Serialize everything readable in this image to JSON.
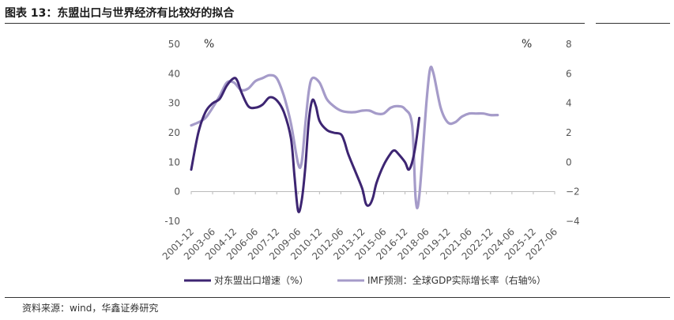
{
  "title": "图表 13：东盟出口与世界经济有比较好的拟合",
  "source": "资料来源：wind，华鑫证券研究",
  "chart_data": {
    "type": "line",
    "left_axis": {
      "unit": "%",
      "ylim": [
        -10,
        50
      ],
      "ticks": [
        50,
        40,
        30,
        20,
        10,
        0,
        -10
      ]
    },
    "right_axis": {
      "unit": "%",
      "ylim": [
        -4,
        8
      ],
      "ticks": [
        8,
        6,
        4,
        2,
        0,
        -2,
        -4
      ]
    },
    "x_tick_labels": [
      "2001-12",
      "2003-06",
      "2004-12",
      "2006-06",
      "2007-12",
      "2009-06",
      "2010-12",
      "2012-06",
      "2013-12",
      "2015-06",
      "2016-12",
      "2018-06",
      "2019-12",
      "2021-06",
      "2022-12",
      "2024-06",
      "2025-12",
      "2027-06"
    ],
    "grid": false,
    "legend_position": "bottom",
    "series": [
      {
        "name": "对东盟出口增速（%）",
        "axis": "left",
        "color": "#3d2572",
        "points": [
          [
            "2001-12",
            7.5
          ],
          [
            "2002-06",
            20
          ],
          [
            "2002-12",
            27
          ],
          [
            "2003-06",
            30
          ],
          [
            "2003-12",
            31.5
          ],
          [
            "2004-06",
            36
          ],
          [
            "2004-12",
            38.5
          ],
          [
            "2005-03",
            37.5
          ],
          [
            "2005-06",
            34
          ],
          [
            "2005-12",
            29
          ],
          [
            "2006-06",
            28.5
          ],
          [
            "2006-12",
            29.5
          ],
          [
            "2007-06",
            32
          ],
          [
            "2007-12",
            31
          ],
          [
            "2008-06",
            27
          ],
          [
            "2008-12",
            18
          ],
          [
            "2009-03",
            5
          ],
          [
            "2009-06",
            -6.5
          ],
          [
            "2009-09",
            -3
          ],
          [
            "2009-12",
            8
          ],
          [
            "2010-03",
            24
          ],
          [
            "2010-06",
            31
          ],
          [
            "2010-09",
            29
          ],
          [
            "2010-12",
            24
          ],
          [
            "2011-06",
            21
          ],
          [
            "2011-12",
            20
          ],
          [
            "2012-06",
            19.5
          ],
          [
            "2012-09",
            17
          ],
          [
            "2012-12",
            13
          ],
          [
            "2013-06",
            7
          ],
          [
            "2013-12",
            1
          ],
          [
            "2014-03",
            -4
          ],
          [
            "2014-06",
            -4.5
          ],
          [
            "2014-09",
            -2
          ],
          [
            "2014-12",
            3
          ],
          [
            "2015-06",
            9
          ],
          [
            "2015-12",
            13
          ],
          [
            "2016-03",
            14
          ],
          [
            "2016-06",
            13
          ],
          [
            "2016-12",
            10
          ],
          [
            "2017-03",
            7.5
          ],
          [
            "2017-06",
            10
          ],
          [
            "2017-09",
            16
          ],
          [
            "2017-12",
            25
          ]
        ]
      },
      {
        "name": "IMF预测：全球GDP实际增长率（右轴%）",
        "axis": "right",
        "color": "#a59bc9",
        "points": [
          [
            "2001-12",
            2.5
          ],
          [
            "2002-06",
            2.7
          ],
          [
            "2002-12",
            3.0
          ],
          [
            "2003-06",
            3.7
          ],
          [
            "2003-12",
            4.5
          ],
          [
            "2004-06",
            5.4
          ],
          [
            "2004-12",
            5.4
          ],
          [
            "2005-06",
            4.9
          ],
          [
            "2005-12",
            5.0
          ],
          [
            "2006-06",
            5.5
          ],
          [
            "2006-12",
            5.7
          ],
          [
            "2007-06",
            5.9
          ],
          [
            "2007-12",
            5.7
          ],
          [
            "2008-06",
            4.5
          ],
          [
            "2008-12",
            2.6
          ],
          [
            "2009-06",
            -0.1
          ],
          [
            "2009-09",
            0.0
          ],
          [
            "2009-12",
            2.5
          ],
          [
            "2010-03",
            4.8
          ],
          [
            "2010-06",
            5.7
          ],
          [
            "2010-12",
            5.4
          ],
          [
            "2011-06",
            4.3
          ],
          [
            "2011-12",
            3.8
          ],
          [
            "2012-06",
            3.5
          ],
          [
            "2012-12",
            3.4
          ],
          [
            "2013-06",
            3.4
          ],
          [
            "2013-12",
            3.5
          ],
          [
            "2014-06",
            3.5
          ],
          [
            "2014-12",
            3.3
          ],
          [
            "2015-06",
            3.3
          ],
          [
            "2015-12",
            3.7
          ],
          [
            "2016-06",
            3.8
          ],
          [
            "2016-12",
            3.6
          ],
          [
            "2017-06",
            2.5
          ],
          [
            "2017-09",
            -2.5
          ],
          [
            "2017-12",
            -2.3
          ],
          [
            "2018-06",
            4.0
          ],
          [
            "2018-09",
            6.3
          ],
          [
            "2018-12",
            6.0
          ],
          [
            "2019-06",
            3.7
          ],
          [
            "2019-12",
            2.7
          ],
          [
            "2020-06",
            2.7
          ],
          [
            "2020-12",
            3.1
          ],
          [
            "2021-06",
            3.3
          ],
          [
            "2021-12",
            3.3
          ],
          [
            "2022-06",
            3.3
          ],
          [
            "2022-12",
            3.2
          ],
          [
            "2023-06",
            3.2
          ]
        ]
      }
    ]
  }
}
